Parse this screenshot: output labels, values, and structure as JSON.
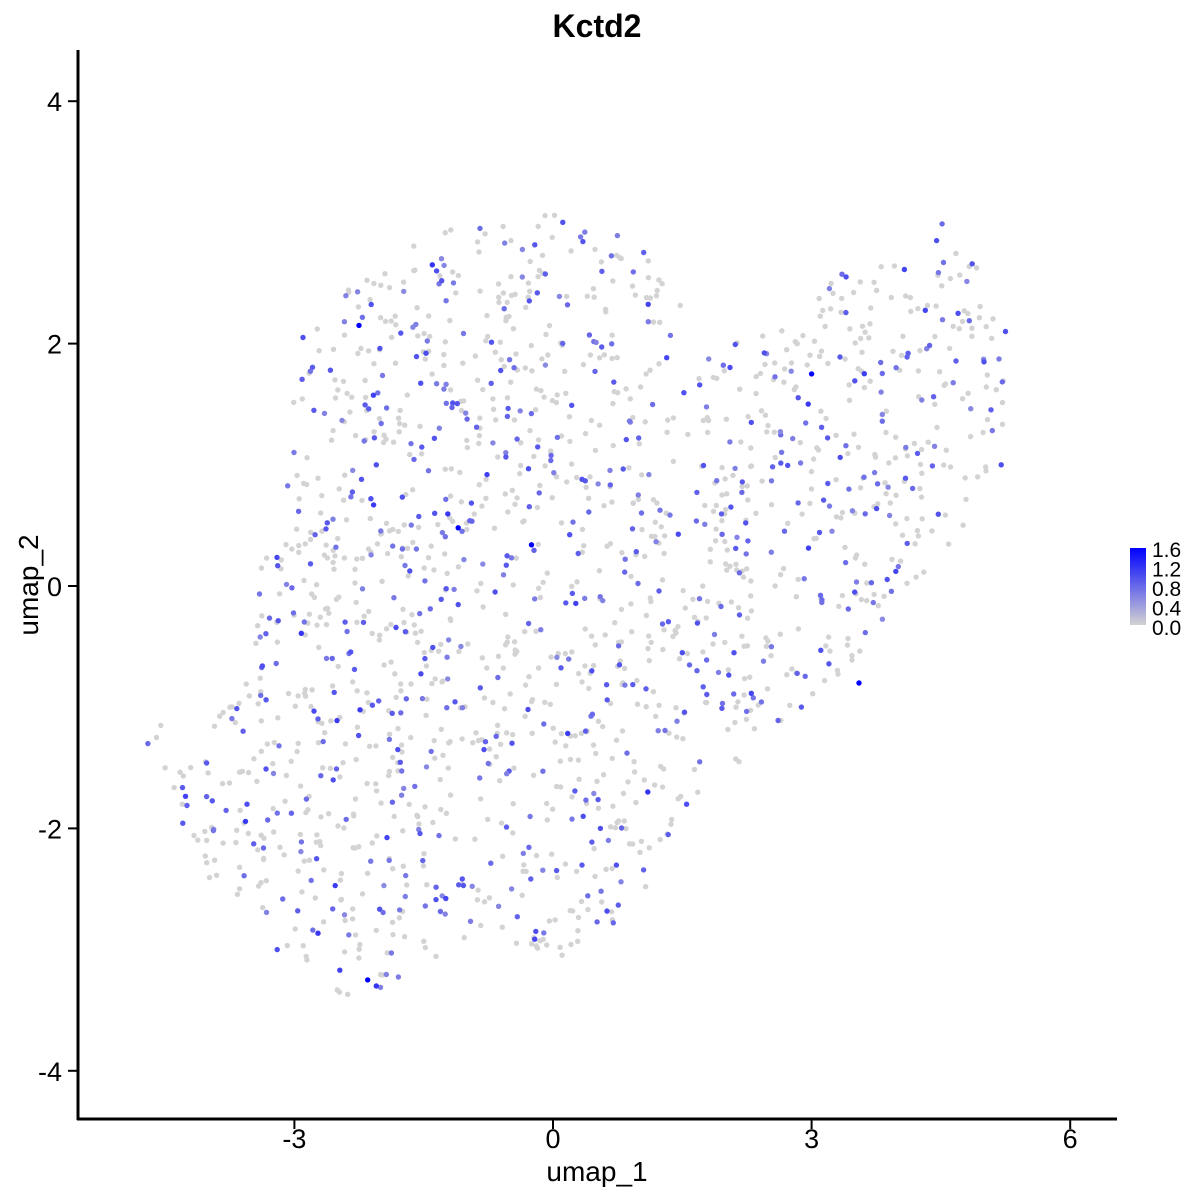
{
  "chart_data": {
    "type": "scatter",
    "title": "Kctd2",
    "xlabel": "umap_1",
    "ylabel": "umap_2",
    "xlim": [
      -5.9,
      6.5
    ],
    "ylim": [
      -4.3,
      4.4
    ],
    "x_ticks": [
      -3,
      0,
      3,
      6
    ],
    "y_ticks": [
      -4,
      -2,
      0,
      2,
      4
    ],
    "x_tick_labels": [
      "-3",
      "0",
      "3",
      "6"
    ],
    "y_tick_labels": [
      "-4",
      "-2",
      "0",
      "2",
      "4"
    ],
    "grid": false,
    "legend": {
      "placement": "right",
      "type": "colorbar",
      "labels": [
        "1.6",
        "1.2",
        "0.8",
        "0.4",
        "0.0"
      ],
      "range": [
        0,
        1.6
      ]
    },
    "colors": {
      "low": "#d3d3d3",
      "high": "#0000ff"
    },
    "approximate_point_count": 1700,
    "points": [
      [
        -2.15,
        -3.25,
        1.6
      ],
      [
        -2.05,
        -3.3,
        1.2
      ],
      [
        -2.25,
        2.15,
        1.6
      ],
      [
        3.0,
        1.75,
        1.6
      ],
      [
        3.55,
        -0.8,
        1.6
      ],
      [
        -1.1,
        0.48,
        1.6
      ],
      [
        -0.25,
        0.34,
        1.6
      ],
      [
        1.1,
        -1.7,
        1.2
      ],
      [
        -2.9,
        2.05,
        1.0
      ],
      [
        -1.35,
        2.6,
        1.0
      ],
      [
        -1.4,
        2.65,
        1.2
      ],
      [
        4.45,
        2.85,
        1.0
      ],
      [
        4.7,
        2.25,
        1.0
      ],
      [
        5.25,
        2.1,
        1.0
      ],
      [
        5.0,
        1.85,
        1.0
      ],
      [
        5.2,
        1.0,
        1.0
      ],
      [
        3.4,
        2.55,
        1.0
      ],
      [
        2.3,
        1.35,
        1.0
      ],
      [
        2.1,
        -0.55,
        1.0
      ],
      [
        1.5,
        -0.55,
        1.0
      ],
      [
        -2.55,
        -1.6,
        1.0
      ],
      [
        -1.8,
        -1.35,
        1.0
      ],
      [
        -3.55,
        -1.8,
        1.0
      ],
      [
        -3.2,
        -3.0,
        1.0
      ],
      [
        -2.05,
        1.0,
        1.0
      ],
      [
        -0.8,
        -1.35,
        1.0
      ],
      [
        0.35,
        -1.9,
        1.0
      ],
      [
        0.55,
        -2.0,
        1.0
      ],
      [
        -0.2,
        -2.85,
        1.0
      ],
      [
        0.45,
        -0.7,
        1.0
      ],
      [
        1.55,
        -1.8,
        1.0
      ],
      [
        3.5,
        -0.05,
        1.0
      ]
    ]
  }
}
